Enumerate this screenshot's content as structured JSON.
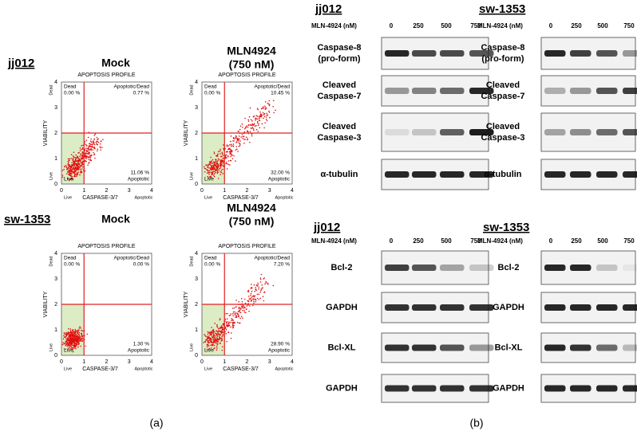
{
  "panel_a": {
    "label": "(a)",
    "common": {
      "profile": "APOPTOSIS PROFILE",
      "y_label": "VIABILITY",
      "x_label": "CASPASE-3/7",
      "ticks": [
        "0",
        "1",
        "2",
        "3",
        "4"
      ],
      "dead": "Dead",
      "apoptotic_dead": "Apoptotic/Dead",
      "live": "Live",
      "apoptotic": "Apoptotic"
    },
    "rows": [
      {
        "cell_line": "jj012",
        "plots": [
          {
            "title": [
              "Mock"
            ],
            "dead_pct": "0.00 %",
            "apoptotic_dead_pct": "0.77 %",
            "apoptotic_pct": "11.06 %"
          },
          {
            "title": [
              "MLN4924",
              "(750 nM)"
            ],
            "dead_pct": "0.00 %",
            "apoptotic_dead_pct": "10.45 %",
            "apoptotic_pct": "32.00 %"
          }
        ]
      },
      {
        "cell_line": "sw-1353",
        "plots": [
          {
            "title": [
              "Mock"
            ],
            "dead_pct": "0.00 %",
            "apoptotic_dead_pct": "0.00 %",
            "apoptotic_pct": "1.30 %"
          },
          {
            "title": [
              "MLN4924",
              "(750 nM)"
            ],
            "dead_pct": "0.00 %",
            "apoptotic_dead_pct": "7.20 %",
            "apoptotic_pct": "28.90 %"
          }
        ]
      }
    ]
  },
  "panel_b": {
    "label": "(b)",
    "dose_label": "MLN-4924 (nM)",
    "doses": [
      "0",
      "250",
      "500",
      "750"
    ],
    "blots": [
      {
        "cell_line": "jj012",
        "rows": [
          [
            "Caspase-8",
            "(pro-form)"
          ],
          [
            "Cleaved",
            "Caspase-7"
          ],
          [
            "Cleaved",
            "Caspase-3"
          ],
          [
            "α-tubulin"
          ]
        ]
      },
      {
        "cell_line": "sw-1353",
        "rows": [
          [
            "Caspase-8",
            "(pro-form)"
          ],
          [
            "Cleaved",
            "Caspase-7"
          ],
          [
            "Cleaved",
            "Caspase-3"
          ],
          [
            "α-tubulin"
          ]
        ]
      },
      {
        "cell_line": "jj012",
        "rows": [
          [
            "Bcl-2"
          ],
          [
            "GAPDH"
          ],
          [
            "Bcl-XL"
          ],
          [
            "GAPDH"
          ]
        ]
      },
      {
        "cell_line": "sw-1353",
        "rows": [
          [
            "Bcl-2"
          ],
          [
            "GAPDH"
          ],
          [
            "Bcl-XL"
          ],
          [
            "GAPDH"
          ]
        ]
      }
    ]
  }
}
